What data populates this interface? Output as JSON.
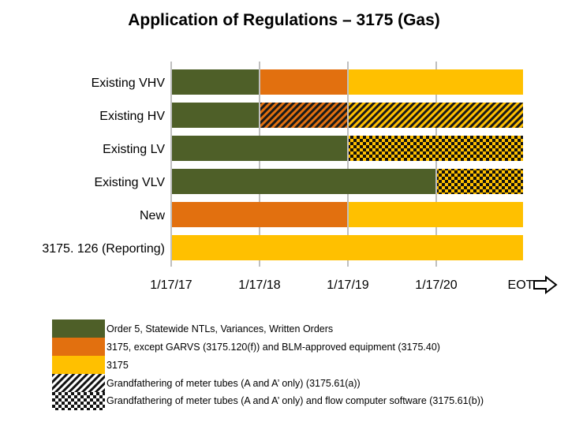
{
  "title": "Application of Regulations – 3175 (Gas)",
  "colors": {
    "green": "#4E5F28",
    "orange": "#E2700F",
    "yellow": "#FFC000",
    "gridline": "#7F7F7F"
  },
  "chart_data": {
    "type": "bar",
    "orientation": "horizontal-timeline",
    "title": "Application of Regulations – 3175 (Gas)",
    "x_ticks": [
      "1/17/17",
      "1/17/18",
      "1/17/19",
      "1/17/20",
      "EOT"
    ],
    "x_range": [
      "1/17/17",
      "EOT"
    ],
    "grid": true,
    "categories": [
      "Existing VHV",
      "Existing HV",
      "Existing LV",
      "Existing VLV",
      "New",
      "3175. 126 (Reporting)"
    ],
    "rows": [
      {
        "label": "Existing VHV",
        "segments": [
          {
            "from": "1/17/17",
            "to": "1/17/18",
            "category": "Order 5"
          },
          {
            "from": "1/17/18",
            "to": "1/17/19",
            "category": "3175 except"
          },
          {
            "from": "1/17/19",
            "to": "EOT",
            "category": "3175"
          }
        ]
      },
      {
        "label": "Existing HV",
        "segments": [
          {
            "from": "1/17/17",
            "to": "1/17/18",
            "category": "Order 5"
          },
          {
            "from": "1/17/18",
            "to": "1/17/19",
            "category": "3175 except + Grandfathering meter tubes"
          },
          {
            "from": "1/17/19",
            "to": "EOT",
            "category": "3175 + Grandfathering meter tubes"
          }
        ]
      },
      {
        "label": "Existing LV",
        "segments": [
          {
            "from": "1/17/17",
            "to": "1/17/19",
            "category": "Order 5"
          },
          {
            "from": "1/17/19",
            "to": "EOT",
            "category": "3175 + Grandfathering meter tubes and flow computer software"
          }
        ]
      },
      {
        "label": "Existing VLV",
        "segments": [
          {
            "from": "1/17/17",
            "to": "1/17/20",
            "category": "Order 5"
          },
          {
            "from": "1/17/20",
            "to": "EOT",
            "category": "3175 + Grandfathering meter tubes and flow computer software"
          }
        ]
      },
      {
        "label": "New",
        "segments": [
          {
            "from": "1/17/17",
            "to": "1/17/19",
            "category": "3175 except"
          },
          {
            "from": "1/17/19",
            "to": "EOT",
            "category": "3175"
          }
        ]
      },
      {
        "label": "3175. 126 (Reporting)",
        "segments": [
          {
            "from": "1/17/17",
            "to": "EOT",
            "category": "3175"
          }
        ]
      }
    ],
    "legend": [
      {
        "fill": "green",
        "pattern": "solid",
        "label": "Order 5, Statewide NTLs, Variances, Written Orders"
      },
      {
        "fill": "orange",
        "pattern": "solid",
        "label": "3175, except GARVS (3175.120(f)) and BLM-approved equipment (3175.40)"
      },
      {
        "fill": "yellow",
        "pattern": "solid",
        "label": "3175"
      },
      {
        "fill": "white",
        "pattern": "diagonal-hatch",
        "label": "Grandfathering of meter tubes (A and A’ only) (3175.61(a))"
      },
      {
        "fill": "white",
        "pattern": "checkerboard",
        "label": "Grandfathering of meter tubes (A and A’ only) and flow computer software (3175.61(b))"
      }
    ]
  }
}
